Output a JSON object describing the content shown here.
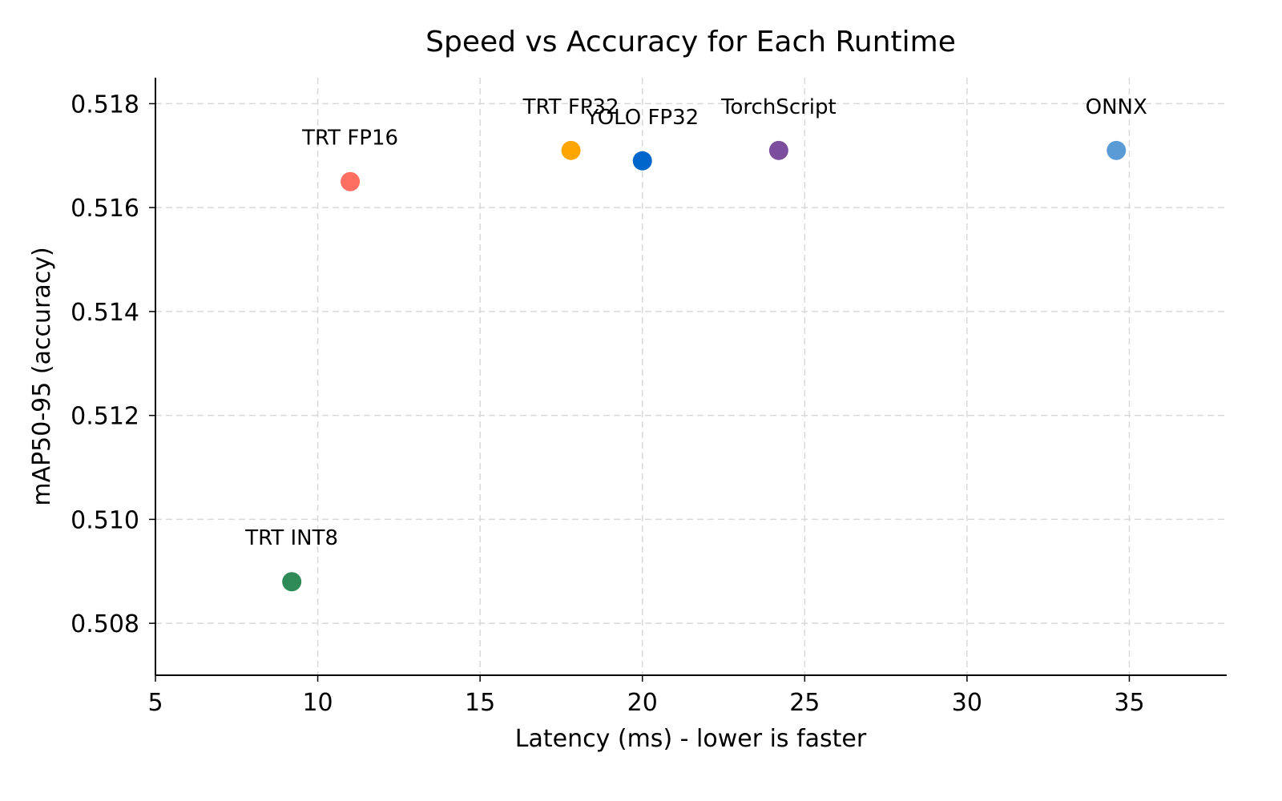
{
  "chart_data": {
    "type": "scatter",
    "title": "Speed vs Accuracy for Each Runtime",
    "xlabel": "Latency (ms) - lower is faster",
    "ylabel": "mAP50-95 (accuracy)",
    "xlim": [
      5,
      38
    ],
    "ylim": [
      0.507,
      0.5185
    ],
    "xticks": [
      5,
      10,
      15,
      20,
      25,
      30,
      35
    ],
    "xtick_labels": [
      "5",
      "10",
      "15",
      "20",
      "25",
      "30",
      "35"
    ],
    "yticks": [
      0.508,
      0.51,
      0.512,
      0.514,
      0.516,
      0.518
    ],
    "ytick_labels": [
      "0.508",
      "0.510",
      "0.512",
      "0.514",
      "0.516",
      "0.518"
    ],
    "grid": true,
    "legend": null,
    "points": [
      {
        "label": "TRT INT8",
        "x": 9.2,
        "y": 0.5088,
        "color": "#2e8b57"
      },
      {
        "label": "TRT FP16",
        "x": 11.0,
        "y": 0.5165,
        "color": "#ff6f61"
      },
      {
        "label": "TRT FP32",
        "x": 17.8,
        "y": 0.5171,
        "color": "#ffa500"
      },
      {
        "label": "YOLO FP32",
        "x": 20.0,
        "y": 0.5169,
        "color": "#0066cc"
      },
      {
        "label": "TorchScript",
        "x": 24.2,
        "y": 0.5171,
        "color": "#7b4f9d"
      },
      {
        "label": "ONNX",
        "x": 34.6,
        "y": 0.5171,
        "color": "#5b9bd5"
      }
    ]
  }
}
